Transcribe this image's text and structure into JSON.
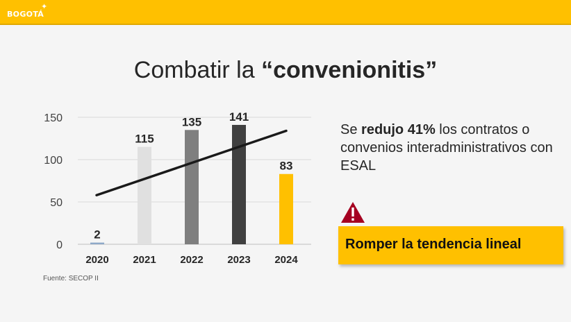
{
  "header": {
    "logo_text": "BOGOTÁ"
  },
  "title": {
    "prefix": "Combatir la ",
    "emphasis": "“convenionitis”"
  },
  "chart_data": {
    "type": "bar",
    "categories": [
      "2020",
      "2021",
      "2022",
      "2023",
      "2024"
    ],
    "values": [
      2,
      115,
      135,
      141,
      83
    ],
    "data_labels": [
      "2",
      "115",
      "135",
      "141",
      "83"
    ],
    "colors": [
      "#8ea9c8",
      "#e0e0e0",
      "#7f7f7f",
      "#404040",
      "#ffc000"
    ],
    "yticks": [
      "0",
      "50",
      "100",
      "150"
    ],
    "ylim": [
      0,
      150
    ],
    "grid": true,
    "trendline": {
      "color": "#1a1a1a",
      "from": 58,
      "to": 134
    }
  },
  "source_note": "Fuente: SECOP II",
  "statement": {
    "part1": "Se ",
    "bold": "reduJo 41%",
    "part2": " los contratos o convenios interadministrativos con ESAL"
  },
  "callout": {
    "text": "Romper la tendencia lineal",
    "icon": "warning-icon"
  }
}
